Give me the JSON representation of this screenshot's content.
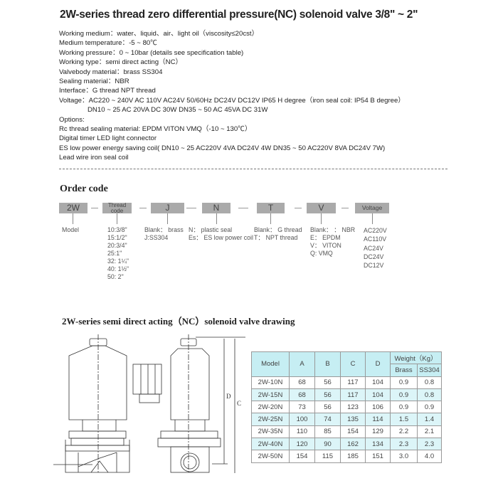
{
  "title": "2W-series thread zero differential pressure(NC) solenoid valve 3/8\" ~ 2\"",
  "specs": [
    "Working medium：water、liquid、air、light oil（viscosity≤20cst）",
    "Medium temperature：-5 ~ 80℃",
    "Working pressure：0 ~ 10bar (details see specification table)",
    "Working type：semi direct acting（NC）",
    "Valvebody material：brass  SS304",
    "Sealing material：NBR",
    "Interface：G thread   NPT thread",
    "Voltage：AC220 ~ 240V  AC 110V  AC24V  50/60Hz   DC24V  DC12V   IP65  H degree（iron seal coil: IP54  B degree）",
    "DN10 ~ 25  AC 20VA  DC 30W   DN35 ~ 50  AC 45VA  DC 31W",
    "Options:",
    "Rc thread   sealing material: EPDM  VITON  VMQ（-10 ~ 130℃）",
    "Digital timer   LED light connector",
    "ES low power energy saving coil( DN10 ~ 25  AC220V 4VA  DC24V 4W   DN35 ~ 50  AC220V 8VA  DC24V 7W)",
    "Lead wire iron seal coil"
  ],
  "order_code": {
    "heading": "Order code",
    "boxes": [
      "2W",
      "Thread code",
      "J",
      "N",
      "T",
      "V",
      "Voltage"
    ],
    "columns": [
      [
        "Model"
      ],
      [
        "10:3/8\"",
        "15:1/2\"",
        "20:3/4\"",
        "25:1\"",
        "32: 1¼\"",
        "40: 1½\"",
        "50: 2\""
      ],
      [
        "Blank： brass",
        "J:SS304"
      ],
      [
        "N： plastic seal",
        "Es： ES low power coil"
      ],
      [
        "Blank： G thread",
        "T： NPT thread"
      ],
      [
        "Blank： ： NBR",
        "E： EPDM",
        "V： VITON",
        "Q:   VMQ"
      ],
      [
        "AC220V",
        "AC110V",
        "AC24V",
        "DC24V",
        "DC12V"
      ]
    ]
  },
  "drawing": {
    "heading": "2W-series semi direct acting（NC）solenoid valve drawing",
    "dimension_labels": [
      "A",
      "B",
      "C",
      "D"
    ]
  },
  "table": {
    "headers": [
      "Model",
      "A",
      "B",
      "C",
      "D",
      "Weight（Kg）"
    ],
    "subheaders": [
      "Brass",
      "SS304"
    ],
    "rows": [
      [
        "2W-10N",
        "68",
        "56",
        "117",
        "104",
        "0.9",
        "0.8"
      ],
      [
        "2W-15N",
        "68",
        "56",
        "117",
        "104",
        "0.9",
        "0.8"
      ],
      [
        "2W-20N",
        "73",
        "56",
        "123",
        "106",
        "0.9",
        "0.9"
      ],
      [
        "2W-25N",
        "100",
        "74",
        "135",
        "114",
        "1.5",
        "1.4"
      ],
      [
        "2W-35N",
        "110",
        "85",
        "154",
        "129",
        "2.2",
        "2.1"
      ],
      [
        "2W-40N",
        "120",
        "90",
        "162",
        "134",
        "2.3",
        "2.3"
      ],
      [
        "2W-50N",
        "154",
        "115",
        "185",
        "151",
        "3.0",
        "4.0"
      ]
    ],
    "colors": {
      "header": "#c6eef3",
      "stripe": "#dcf5f8"
    }
  }
}
